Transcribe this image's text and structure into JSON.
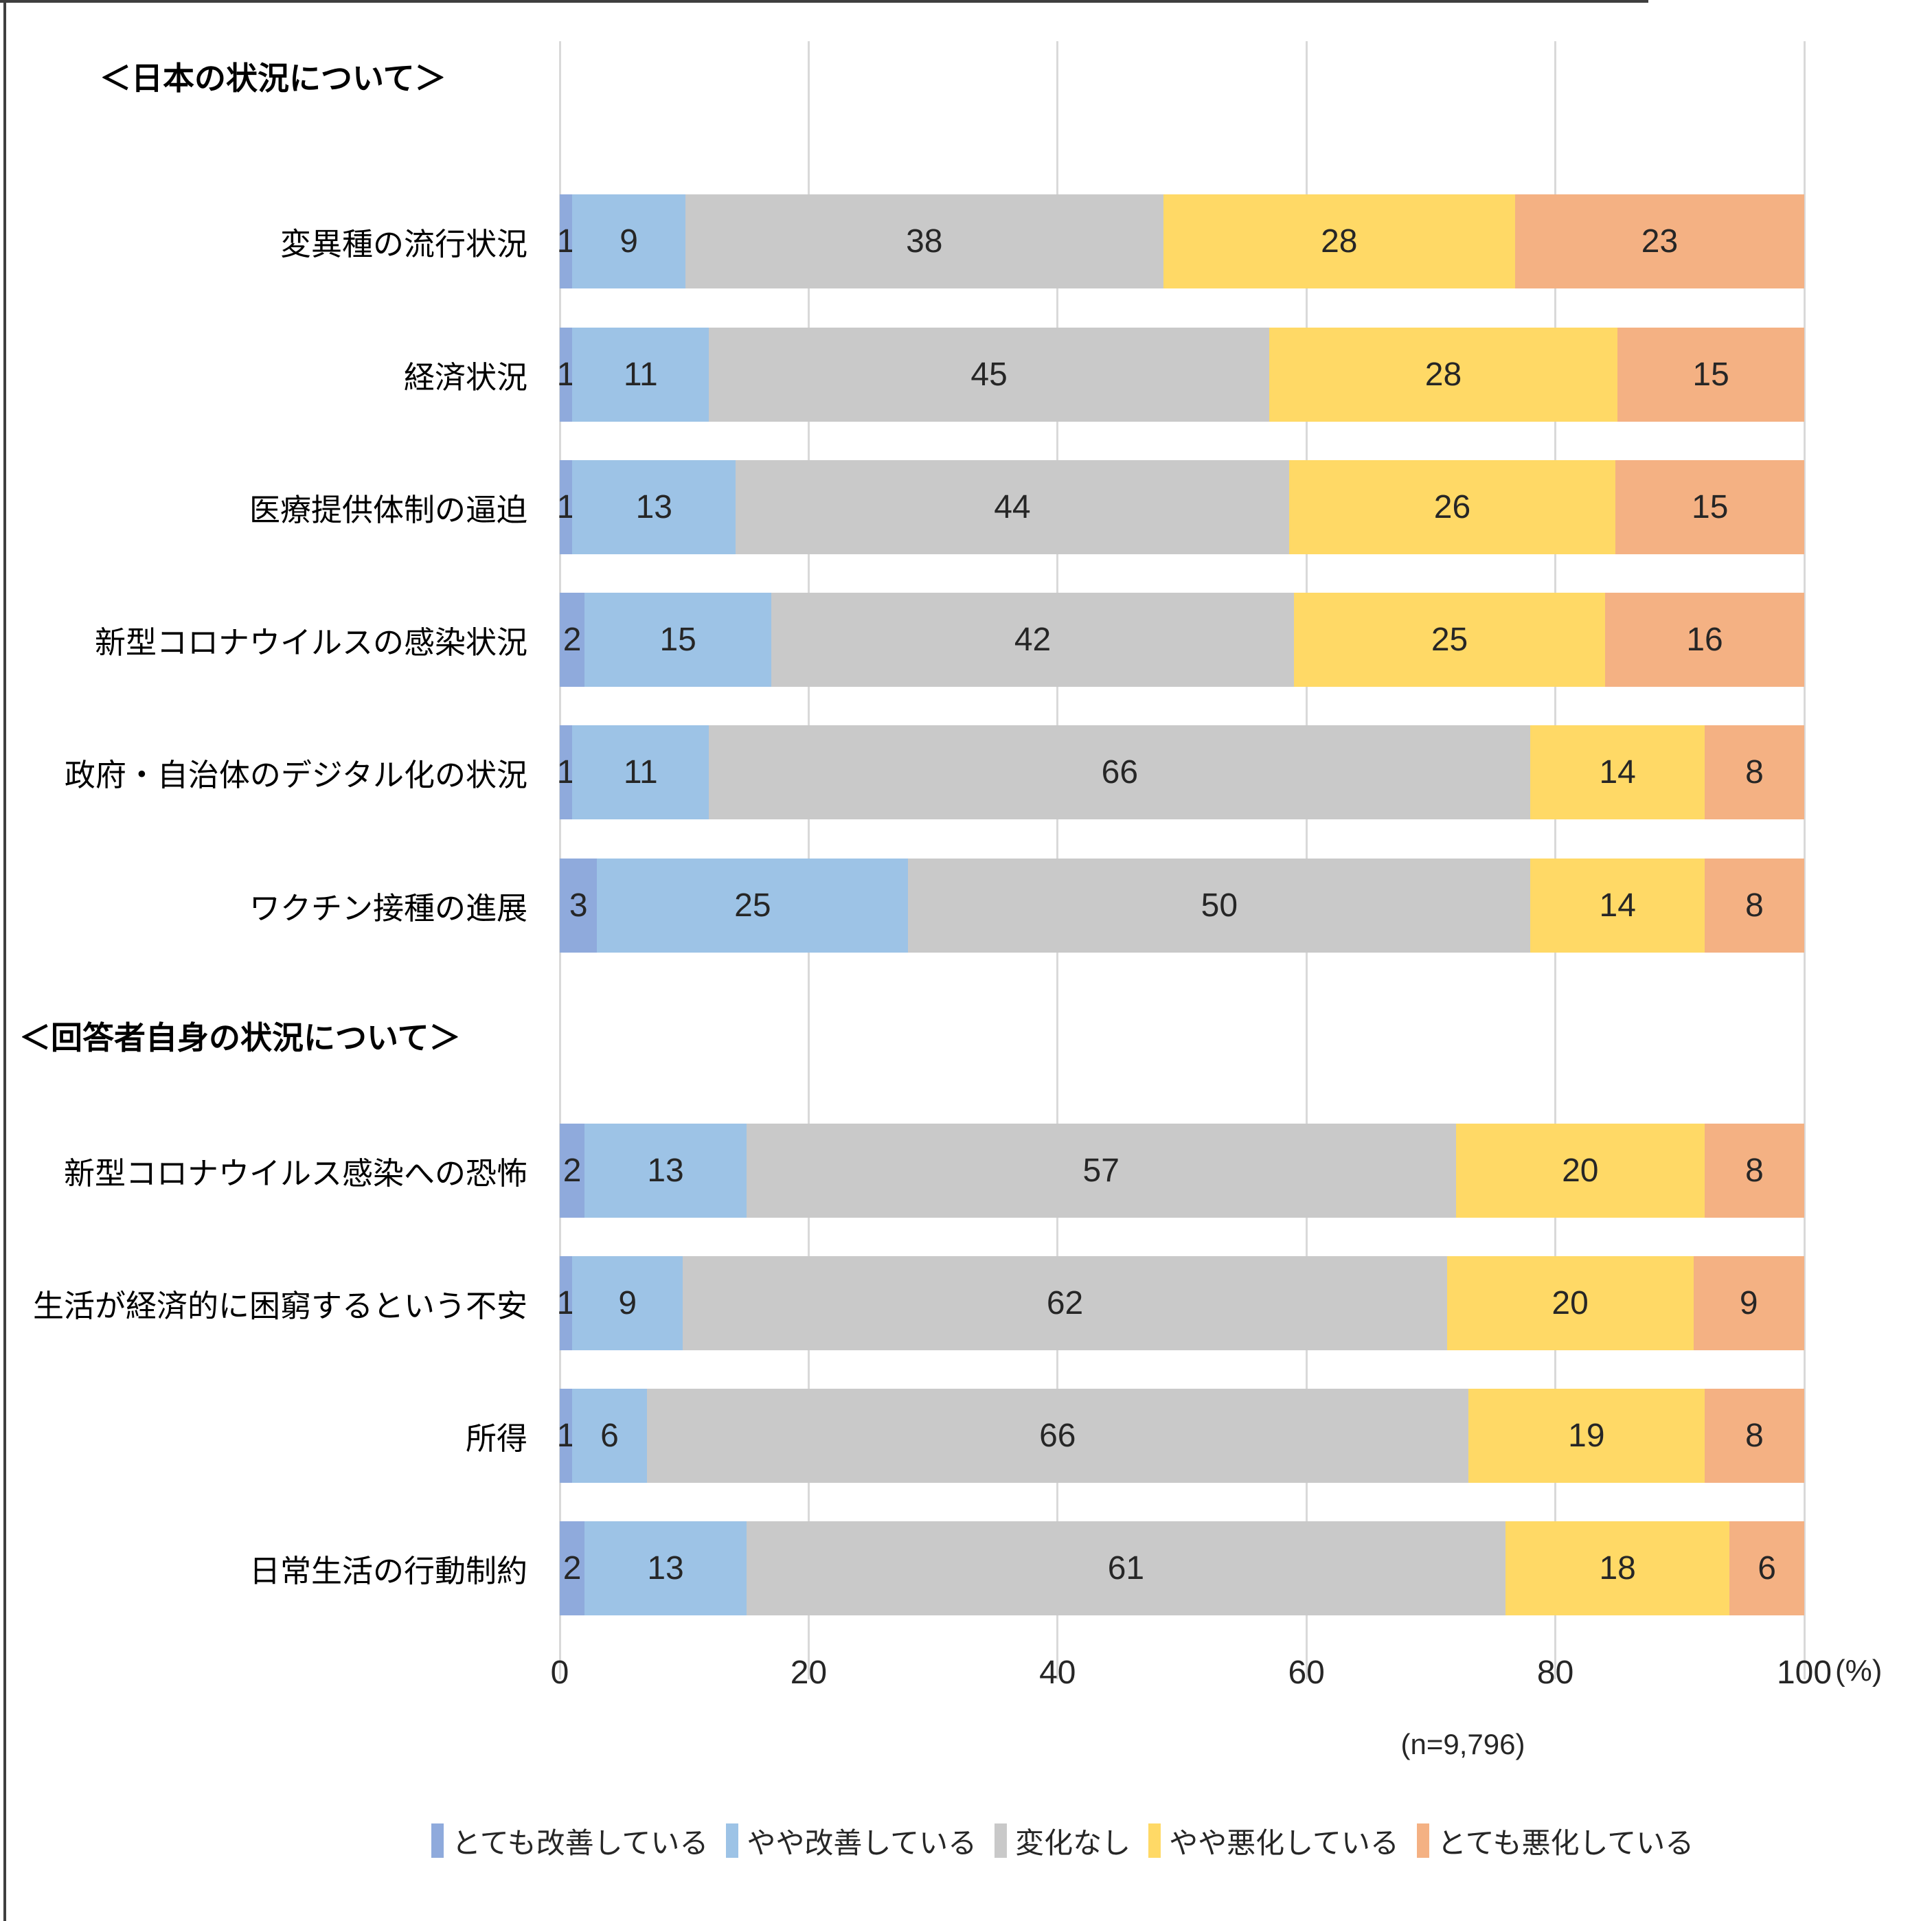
{
  "chart_data": {
    "type": "bar",
    "orientation": "horizontal-stacked",
    "xlim": [
      0,
      100
    ],
    "x_ticks": [
      0,
      20,
      40,
      60,
      80,
      100
    ],
    "x_axis_unit_label": "(%)",
    "sample_size_note": "(n=9,796)",
    "grid": "vertical-light-gray",
    "legend_position": "bottom",
    "series": [
      {
        "name": "とても改善している",
        "color": "#8FAADC"
      },
      {
        "name": "やや改善している",
        "color": "#9DC3E6"
      },
      {
        "name": "変化なし",
        "color": "#C9C9C9"
      },
      {
        "name": "やや悪化している",
        "color": "#FFD966"
      },
      {
        "name": "とても悪化している",
        "color": "#F4B183"
      }
    ],
    "sections": [
      {
        "header": "＜日本の状況について＞",
        "rows": [
          {
            "label": "変異種の流行状況",
            "values": [
              1,
              9,
              38,
              28,
              23
            ]
          },
          {
            "label": "経済状況",
            "values": [
              1,
              11,
              45,
              28,
              15
            ]
          },
          {
            "label": "医療提供体制の逼迫",
            "values": [
              1,
              13,
              44,
              26,
              15
            ]
          },
          {
            "label": "新型コロナウイルスの感染状況",
            "values": [
              2,
              15,
              42,
              25,
              16
            ]
          },
          {
            "label": "政府・自治体のデジタル化の状況",
            "values": [
              1,
              11,
              66,
              14,
              8
            ]
          },
          {
            "label": "ワクチン接種の進展",
            "values": [
              3,
              25,
              50,
              14,
              8
            ]
          }
        ]
      },
      {
        "header": "＜回答者自身の状況について＞",
        "rows": [
          {
            "label": "新型コロナウイルス感染への恐怖",
            "values": [
              2,
              13,
              57,
              20,
              8
            ]
          },
          {
            "label": "生活が経済的に困窮するという不安",
            "values": [
              1,
              9,
              62,
              20,
              9
            ]
          },
          {
            "label": "所得",
            "values": [
              1,
              6,
              66,
              19,
              8
            ]
          },
          {
            "label": "日常生活の行動制約",
            "values": [
              2,
              13,
              61,
              18,
              6
            ]
          }
        ]
      }
    ]
  },
  "frame": {
    "border_color": "#3f3f3f"
  }
}
